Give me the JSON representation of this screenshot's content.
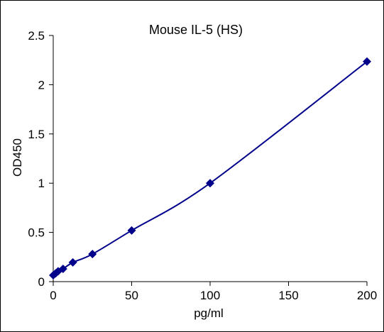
{
  "chart_data": {
    "type": "scatter",
    "title": "Mouse IL-5 (HS)",
    "xlabel": "pg/ml",
    "ylabel": "OD450",
    "xlim": [
      0,
      200
    ],
    "ylim": [
      0,
      2.5
    ],
    "x_ticks": [
      "0",
      "50",
      "100",
      "150",
      "200"
    ],
    "y_ticks": [
      "0",
      "0.5",
      "1",
      "1.5",
      "2",
      "2.5"
    ],
    "grid": false,
    "legend": "none",
    "marker": "diamond",
    "series_color": "#00008B",
    "series": [
      {
        "x": [
          0,
          1.56,
          3.13,
          6.25,
          12.5,
          25,
          50,
          100,
          200
        ],
        "values": [
          0.065,
          0.085,
          0.105,
          0.13,
          0.195,
          0.28,
          0.52,
          1.0,
          2.235
        ]
      }
    ]
  }
}
